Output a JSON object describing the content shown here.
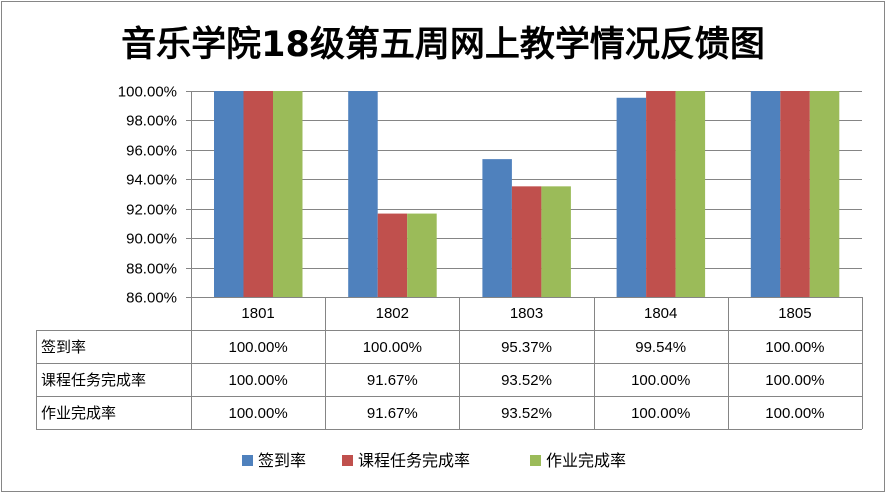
{
  "chart_data": {
    "type": "bar",
    "title": "音乐学院18级第五周网上教学情况反馈图",
    "categories": [
      "1801",
      "1802",
      "1803",
      "1804",
      "1805"
    ],
    "series": [
      {
        "name": "签到率",
        "color": "#4F81BD",
        "values": [
          100.0,
          100.0,
          95.37,
          99.54,
          100.0
        ],
        "labels": [
          "100.00%",
          "100.00%",
          "95.37%",
          "99.54%",
          "100.00%"
        ]
      },
      {
        "name": "课程任务完成率",
        "color": "#C0504D",
        "values": [
          100.0,
          91.67,
          93.52,
          100.0,
          100.0
        ],
        "labels": [
          "100.00%",
          "91.67%",
          "93.52%",
          "100.00%",
          "100.00%"
        ]
      },
      {
        "name": "作业完成率",
        "color": "#9BBB59",
        "values": [
          100.0,
          91.67,
          93.52,
          100.0,
          100.0
        ],
        "labels": [
          "100.00%",
          "91.67%",
          "93.52%",
          "100.00%",
          "100.00%"
        ]
      }
    ],
    "ylim": [
      86,
      100
    ],
    "yticks": [
      86,
      88,
      90,
      92,
      94,
      96,
      98,
      100
    ],
    "ytick_labels": [
      "86.00%",
      "88.00%",
      "90.00%",
      "92.00%",
      "94.00%",
      "96.00%",
      "98.00%",
      "100.00%"
    ],
    "grid": true,
    "data_table": true,
    "legend_position": "bottom"
  }
}
